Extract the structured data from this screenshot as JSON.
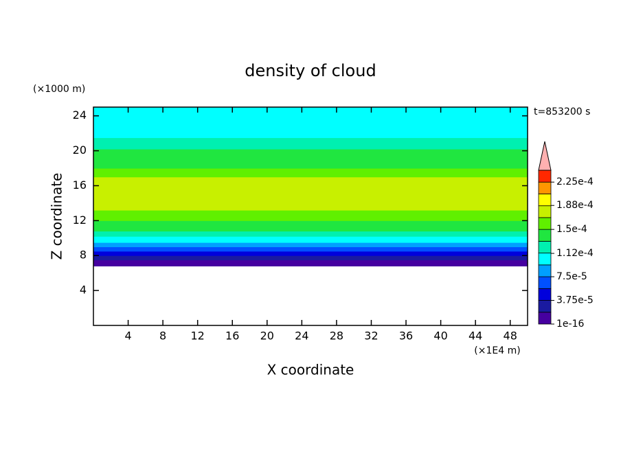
{
  "chart_data": {
    "type": "contour",
    "title": "density of cloud",
    "x_label": "X coordinate",
    "y_label": "Z coordinate",
    "x_unit": "(×1E4 m)",
    "y_unit": "(×1000 m)",
    "annotation": "t=853200 s",
    "xlim": [
      0,
      50
    ],
    "ylim": [
      0,
      25
    ],
    "xticks": [
      4,
      8,
      12,
      16,
      20,
      24,
      28,
      32,
      36,
      40,
      44,
      48
    ],
    "yticks": [
      4,
      8,
      12,
      16,
      20,
      24
    ],
    "z": [
      6.8,
      7.5,
      8,
      8.5,
      9,
      9.5,
      10.2,
      10.8,
      12,
      13.2,
      17,
      18,
      20.2,
      21.5,
      25
    ],
    "values": [
      9.4e-06,
      2.8e-05,
      4.7e-05,
      6.6e-05,
      8.4e-05,
      0.000103,
      0.000122,
      0.000141,
      0.000159,
      0.000178,
      0.000159,
      0.000141,
      0.000122,
      0.000103
    ],
    "clim": [
      0,
      0.00024375
    ],
    "colors": [
      "#4600a0",
      "#1a1aa0",
      "#0000dc",
      "#0050ff",
      "#00a0ff",
      "#00ffff",
      "#00f0b0",
      "#20e640",
      "#60f000",
      "#c8f000",
      "#ffff00",
      "#ff9600",
      "#ff2800"
    ],
    "over_color": "#ffb0b0",
    "cticks": [
      1e-16,
      {
        "value": 3.75e-05,
        "label": "3.75e-5"
      },
      {
        "value": 7.5e-05,
        "label": "7.5e-5"
      },
      {
        "value": 0.000112,
        "label": "1.12e-4"
      },
      {
        "value": 0.00015,
        "label": "1.5e-4"
      },
      {
        "value": 0.000188,
        "label": "1.88e-4"
      },
      {
        "value": 0.000225,
        "label": "2.25e-4"
      }
    ]
  }
}
